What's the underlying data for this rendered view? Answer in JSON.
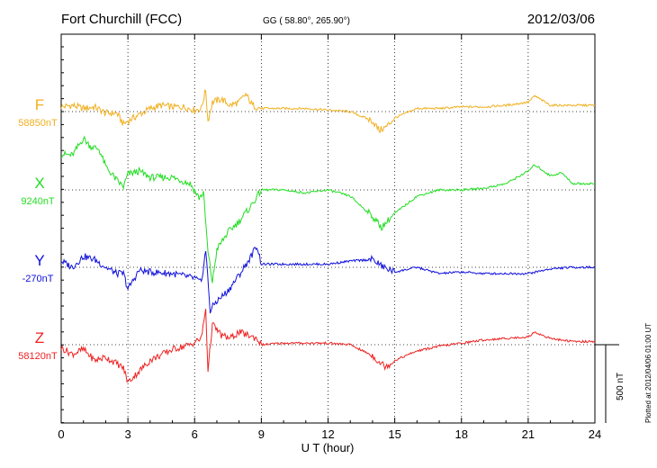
{
  "header": {
    "station": "Fort Churchill (FCC)",
    "coords": "GG ( 58.80°, 265.90°)",
    "date": "2012/03/06"
  },
  "footer": {
    "plotted": "Plotted at 2012/04/06 01:00 UT"
  },
  "chart_data": {
    "type": "line",
    "title": "Fort Churchill (FCC)",
    "subtitle": "GG ( 58.80°, 265.90°)",
    "date": "2012/03/06",
    "xlabel": "U T (hour)",
    "xlim": [
      0,
      24
    ],
    "xticks": [
      0,
      3,
      6,
      9,
      12,
      15,
      18,
      21,
      24
    ],
    "xtick_labels": [
      "0",
      "3",
      "6",
      "9",
      "12",
      "15",
      "18",
      "21",
      "24"
    ],
    "grid": true,
    "scale_bar": {
      "label": "500 nT",
      "value_nT": 500
    },
    "series": [
      {
        "name": "F",
        "baseline_label": "58850nT",
        "baseline_nT": 58850,
        "color": "#f0b020",
        "x": [
          0,
          0.5,
          1,
          1.5,
          2,
          2.5,
          2.8,
          3,
          3.5,
          4,
          4.5,
          5,
          5.5,
          6,
          6.3,
          6.5,
          6.6,
          6.8,
          7.2,
          7.6,
          8,
          8.3,
          8.6,
          9,
          10,
          11,
          12,
          13,
          14,
          14.3,
          14.6,
          15,
          16,
          17,
          18,
          19,
          20,
          21,
          21.3,
          22,
          23,
          24
        ],
        "values": [
          30,
          40,
          20,
          30,
          -10,
          -10,
          -80,
          -60,
          -20,
          20,
          40,
          30,
          30,
          10,
          20,
          140,
          -60,
          60,
          80,
          40,
          60,
          110,
          40,
          20,
          20,
          20,
          10,
          0,
          -60,
          -120,
          -100,
          -40,
          20,
          20,
          30,
          30,
          40,
          60,
          100,
          40,
          40,
          40
        ]
      },
      {
        "name": "X",
        "baseline_label": "9240nT",
        "baseline_nT": 9240,
        "color": "#22dd22",
        "x": [
          0,
          0.5,
          1,
          1.3,
          1.7,
          2,
          2.5,
          2.8,
          3,
          3.5,
          4,
          5,
          5.8,
          6.2,
          6.4,
          6.6,
          6.8,
          7,
          7.5,
          8,
          8.5,
          9,
          10,
          11,
          12,
          13,
          14,
          14.4,
          15,
          16,
          17,
          18,
          19,
          20,
          21,
          21.3,
          22,
          22.5,
          23,
          24
        ],
        "values": [
          230,
          220,
          330,
          280,
          260,
          150,
          60,
          20,
          100,
          120,
          80,
          80,
          40,
          -50,
          -20,
          -400,
          -590,
          -380,
          -270,
          -200,
          -110,
          0,
          0,
          -20,
          0,
          -40,
          -170,
          -240,
          -150,
          -40,
          0,
          0,
          10,
          40,
          120,
          160,
          90,
          110,
          40,
          40
        ]
      },
      {
        "name": "Y",
        "baseline_label": "-270nT",
        "baseline_nT": -270,
        "color": "#1010dd",
        "x": [
          0,
          0.5,
          1,
          1.5,
          2,
          2.5,
          2.8,
          3,
          3.5,
          4,
          5,
          6,
          6.3,
          6.5,
          6.7,
          6.9,
          7.5,
          8,
          8.5,
          8.8,
          9,
          10,
          11,
          12,
          13,
          14,
          14.5,
          15,
          16,
          17,
          18,
          19,
          20,
          21,
          22,
          23,
          24
        ],
        "values": [
          40,
          0,
          70,
          50,
          0,
          -40,
          -40,
          -140,
          -20,
          -30,
          -40,
          -70,
          -100,
          110,
          -280,
          -230,
          -150,
          -50,
          60,
          140,
          20,
          20,
          20,
          20,
          40,
          50,
          0,
          -30,
          0,
          -40,
          -30,
          -40,
          -40,
          -40,
          -10,
          0,
          0
        ]
      },
      {
        "name": "Z",
        "baseline_label": "58120nT",
        "baseline_nT": 58120,
        "color": "#ee2222",
        "x": [
          0,
          0.5,
          1,
          1.5,
          2,
          2.5,
          2.8,
          3,
          3.5,
          4,
          5,
          5.8,
          6.3,
          6.5,
          6.6,
          6.8,
          7.2,
          7.6,
          8,
          8.4,
          8.8,
          9,
          10,
          11,
          12,
          13,
          14,
          14.3,
          14.6,
          15,
          16,
          17,
          18,
          19,
          20,
          21,
          21.3,
          22,
          23,
          24
        ],
        "values": [
          -20,
          -60,
          -30,
          -100,
          -80,
          -120,
          -150,
          -240,
          -170,
          -100,
          -30,
          0,
          40,
          230,
          -160,
          130,
          60,
          40,
          80,
          60,
          40,
          0,
          10,
          10,
          10,
          0,
          -70,
          -110,
          -140,
          -100,
          -40,
          -10,
          10,
          30,
          40,
          50,
          80,
          40,
          20,
          20
        ]
      }
    ]
  }
}
